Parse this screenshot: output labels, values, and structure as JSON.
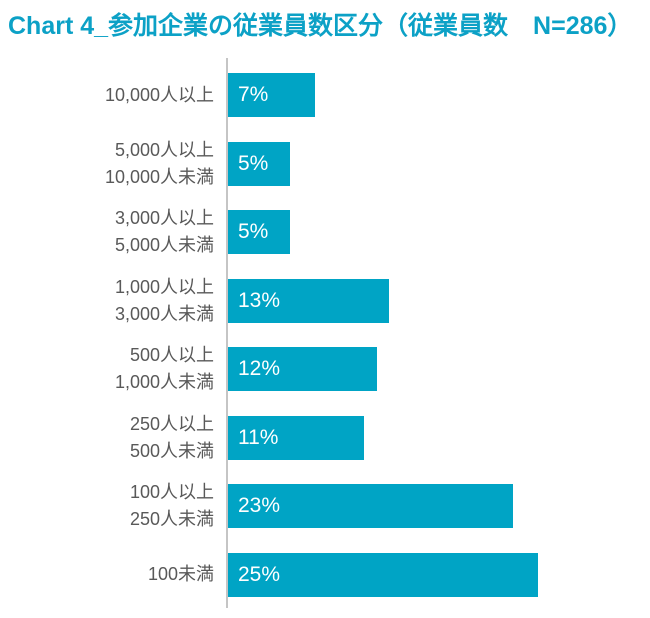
{
  "title": "Chart 4_参加企業の従業員数区分（従業員数　N=286）",
  "colors": {
    "bar": "#00A4C5",
    "title": "#0CA1C6",
    "category_label": "#595959",
    "value_label": "#FFFFFF",
    "axis_line": "#C5C5C5"
  },
  "chart_data": {
    "type": "bar",
    "orientation": "horizontal",
    "title": "Chart 4_参加企業の従業員数区分（従業員数　N=286）",
    "sample_size_label": "N=286",
    "categories": [
      "10,000人以上",
      "5,000人以上\n10,000人未満",
      "3,000人以上\n5,000人未満",
      "1,000人以上\n3,000人未満",
      "500人以上\n1,000人未満",
      "250人以上\n500人未満",
      "100人以上\n250人未満",
      "100未満"
    ],
    "values": [
      7,
      5,
      5,
      13,
      12,
      11,
      23,
      25
    ],
    "value_labels": [
      "7%",
      "5%",
      "5%",
      "13%",
      "12%",
      "11%",
      "23%",
      "25%"
    ],
    "unit": "%",
    "xlim": [
      0,
      34
    ],
    "grid": false,
    "legend": false,
    "value_label_position": "inside-start"
  }
}
